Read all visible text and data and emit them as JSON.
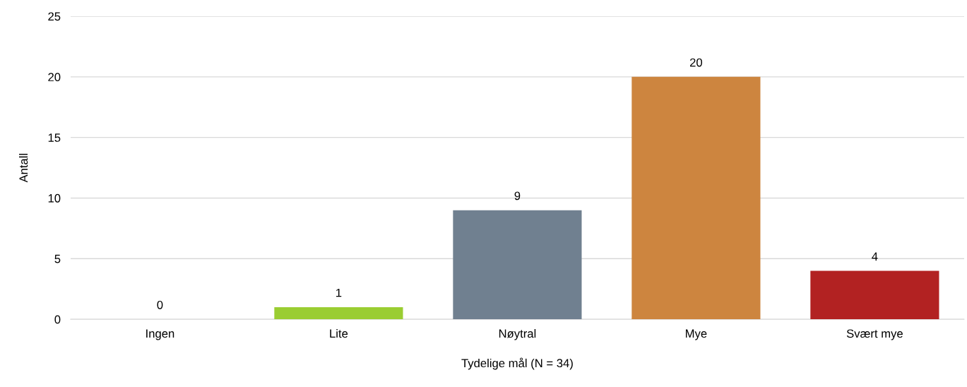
{
  "chart_data": {
    "type": "bar",
    "xlabel": "Tydelige mål (N = 34)",
    "ylabel": "Antall",
    "categories": [
      "Ingen",
      "Lite",
      "Nøytral",
      "Mye",
      "Svært mye"
    ],
    "values": [
      0,
      1,
      9,
      20,
      4
    ],
    "colors": [
      "#a9a9a9",
      "#9acd32",
      "#708090",
      "#cd853f",
      "#b22222"
    ],
    "ylim": [
      0,
      25
    ],
    "yticks": [
      0,
      5,
      10,
      15,
      20,
      25
    ],
    "grid": "y",
    "data_labels": true
  }
}
